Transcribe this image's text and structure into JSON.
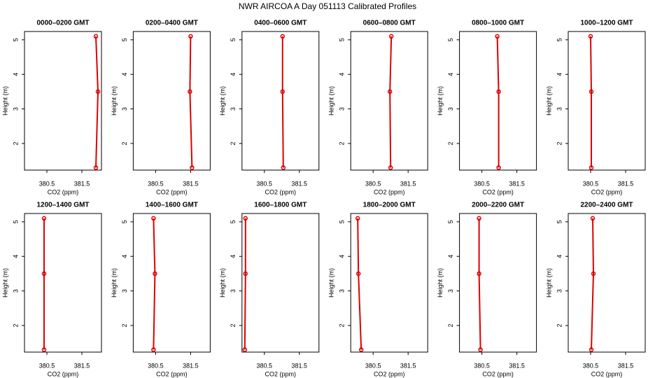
{
  "title": "NWR AIRCOA A  Day 051113  Calibrated Profiles",
  "chart_data": [
    {
      "type": "line",
      "title": "0000–0200 GMT",
      "xlabel": "CO2 (ppm)",
      "ylabel": "Height (m)",
      "x": [
        381.9,
        381.96,
        381.9
      ],
      "y": [
        1.3,
        3.5,
        5.1
      ],
      "color": "#dd0000",
      "xlim": [
        379.86,
        382.06
      ],
      "ylim": [
        1.23,
        5.24
      ],
      "xticks": [
        380.5,
        381.5
      ],
      "yticks": [
        2,
        3,
        4,
        5
      ]
    },
    {
      "type": "line",
      "title": "0200–0400 GMT",
      "xlabel": "CO2 (ppm)",
      "ylabel": "Height (m)",
      "x": [
        381.54,
        381.48,
        381.5
      ],
      "y": [
        1.3,
        3.5,
        5.1
      ],
      "color": "#dd0000",
      "xlim": [
        379.86,
        382.06
      ],
      "ylim": [
        1.23,
        5.24
      ],
      "xticks": [
        380.5,
        381.5
      ],
      "yticks": [
        2,
        3,
        4,
        5
      ]
    },
    {
      "type": "line",
      "title": "0400–0600 GMT",
      "xlabel": "CO2 (ppm)",
      "ylabel": "Height (m)",
      "x": [
        381.04,
        381.02,
        381.02
      ],
      "y": [
        1.3,
        3.5,
        5.1
      ],
      "color": "#dd0000",
      "xlim": [
        379.86,
        382.06
      ],
      "ylim": [
        1.23,
        5.24
      ],
      "xticks": [
        380.5,
        381.5
      ],
      "yticks": [
        2,
        3,
        4,
        5
      ]
    },
    {
      "type": "line",
      "title": "0600–0800 GMT",
      "xlabel": "CO2 (ppm)",
      "ylabel": "Height (m)",
      "x": [
        381.0,
        380.98,
        381.02
      ],
      "y": [
        1.3,
        3.5,
        5.1
      ],
      "color": "#dd0000",
      "xlim": [
        379.86,
        382.06
      ],
      "ylim": [
        1.23,
        5.24
      ],
      "xticks": [
        380.5,
        381.5
      ],
      "yticks": [
        2,
        3,
        4,
        5
      ]
    },
    {
      "type": "line",
      "title": "0800–1000 GMT",
      "xlabel": "CO2 (ppm)",
      "ylabel": "Height (m)",
      "x": [
        380.98,
        380.98,
        380.94
      ],
      "y": [
        1.3,
        3.5,
        5.1
      ],
      "color": "#dd0000",
      "xlim": [
        379.86,
        382.06
      ],
      "ylim": [
        1.23,
        5.24
      ],
      "xticks": [
        380.5,
        381.5
      ],
      "yticks": [
        2,
        3,
        4,
        5
      ]
    },
    {
      "type": "line",
      "title": "1000–1200 GMT",
      "xlabel": "CO2 (ppm)",
      "ylabel": "Height (m)",
      "x": [
        380.52,
        380.52,
        380.5
      ],
      "y": [
        1.3,
        3.5,
        5.1
      ],
      "color": "#dd0000",
      "xlim": [
        379.86,
        382.06
      ],
      "ylim": [
        1.23,
        5.24
      ],
      "xticks": [
        380.5,
        381.5
      ],
      "yticks": [
        2,
        3,
        4,
        5
      ]
    },
    {
      "type": "line",
      "title": "1200–1400 GMT",
      "xlabel": "CO2 (ppm)",
      "ylabel": "Height (m)",
      "x": [
        380.42,
        380.42,
        380.42
      ],
      "y": [
        1.3,
        3.5,
        5.1
      ],
      "color": "#dd0000",
      "xlim": [
        379.86,
        382.06
      ],
      "ylim": [
        1.23,
        5.24
      ],
      "xticks": [
        380.5,
        381.5
      ],
      "yticks": [
        2,
        3,
        4,
        5
      ]
    },
    {
      "type": "line",
      "title": "1400–1600 GMT",
      "xlabel": "CO2 (ppm)",
      "ylabel": "Height (m)",
      "x": [
        380.44,
        380.48,
        380.44
      ],
      "y": [
        1.3,
        3.5,
        5.1
      ],
      "color": "#dd0000",
      "xlim": [
        379.86,
        382.06
      ],
      "ylim": [
        1.23,
        5.24
      ],
      "xticks": [
        380.5,
        381.5
      ],
      "yticks": [
        2,
        3,
        4,
        5
      ]
    },
    {
      "type": "line",
      "title": "1600–1800 GMT",
      "xlabel": "CO2 (ppm)",
      "ylabel": "Height (m)",
      "x": [
        379.94,
        379.96,
        379.96
      ],
      "y": [
        1.3,
        3.5,
        5.1
      ],
      "color": "#dd0000",
      "xlim": [
        379.86,
        382.06
      ],
      "ylim": [
        1.23,
        5.24
      ],
      "xticks": [
        380.5,
        381.5
      ],
      "yticks": [
        2,
        3,
        4,
        5
      ]
    },
    {
      "type": "line",
      "title": "1800–2000 GMT",
      "xlabel": "CO2 (ppm)",
      "ylabel": "Height (m)",
      "x": [
        380.16,
        380.08,
        380.06
      ],
      "y": [
        1.3,
        3.5,
        5.1
      ],
      "color": "#dd0000",
      "xlim": [
        379.86,
        382.06
      ],
      "ylim": [
        1.23,
        5.24
      ],
      "xticks": [
        380.5,
        381.5
      ],
      "yticks": [
        2,
        3,
        4,
        5
      ]
    },
    {
      "type": "line",
      "title": "2000–2200 GMT",
      "xlabel": "CO2 (ppm)",
      "ylabel": "Height (m)",
      "x": [
        380.46,
        380.42,
        380.42
      ],
      "y": [
        1.3,
        3.5,
        5.1
      ],
      "color": "#dd0000",
      "xlim": [
        379.86,
        382.06
      ],
      "ylim": [
        1.23,
        5.24
      ],
      "xticks": [
        380.5,
        381.5
      ],
      "yticks": [
        2,
        3,
        4,
        5
      ]
    },
    {
      "type": "line",
      "title": "2200–2400 GMT",
      "xlabel": "CO2 (ppm)",
      "ylabel": "Height (m)",
      "x": [
        380.52,
        380.58,
        380.56
      ],
      "y": [
        1.3,
        3.5,
        5.1
      ],
      "color": "#dd0000",
      "xlim": [
        379.86,
        382.06
      ],
      "ylim": [
        1.23,
        5.24
      ],
      "xticks": [
        380.5,
        381.5
      ],
      "yticks": [
        2,
        3,
        4,
        5
      ]
    }
  ]
}
